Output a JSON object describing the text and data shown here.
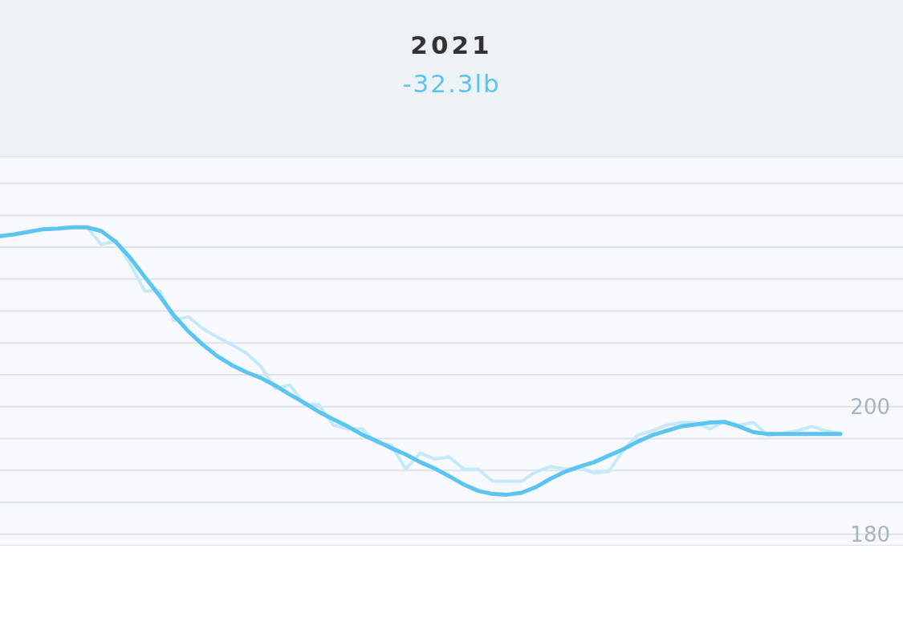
{
  "chart_data": {
    "type": "line",
    "title": "2021",
    "subtitle": "-32.3lb",
    "categories": [
      null,
      null,
      null,
      null,
      null,
      null,
      null,
      null,
      null,
      null,
      null,
      null,
      null,
      null,
      null,
      null,
      null,
      null,
      null,
      null,
      null,
      null,
      null,
      null,
      null,
      null,
      null,
      null,
      null,
      null,
      null,
      null,
      null,
      null,
      null,
      null,
      null,
      null,
      null,
      null,
      null,
      null,
      null,
      null,
      null,
      null,
      null,
      null,
      null,
      null,
      null,
      null,
      null,
      null,
      null,
      null,
      null,
      null,
      null
    ],
    "ylim": [
      178.2,
      239.2
    ],
    "yticks": [
      180,
      {
        "value": 185,
        "label": null
      },
      {
        "value": 190,
        "label": null
      },
      {
        "value": 195,
        "label": null
      },
      200,
      {
        "value": 205,
        "label": null
      },
      {
        "value": 210,
        "label": null
      },
      {
        "value": 215,
        "label": null
      },
      {
        "value": 220,
        "label": null
      },
      {
        "value": 225,
        "label": null
      },
      {
        "value": 230,
        "label": null
      },
      {
        "value": 235,
        "label": null
      }
    ],
    "grid": "y",
    "tick_labels": "y",
    "marker": "none",
    "series": [
      {
        "color": "#c3e9fa",
        "values": [
          226.7,
          227.0,
          227.4,
          227.8,
          227.9,
          228.1,
          228.1,
          225.4,
          226.0,
          222.3,
          218.1,
          218.2,
          213.5,
          214.1,
          212.2,
          210.9,
          209.7,
          208.4,
          206.3,
          202.8,
          203.4,
          200.3,
          200.3,
          197.1,
          196.5,
          196.5,
          194.3,
          194.0,
          190.2,
          192.7,
          191.8,
          192.1,
          190.2,
          190.2,
          188.3,
          188.3,
          188.3,
          189.8,
          190.6,
          190.2,
          190.4,
          189.6,
          189.8,
          193.1,
          195.5,
          196.2,
          197.1,
          197.5,
          197.5,
          196.5,
          197.7,
          197.1,
          197.5,
          195.5,
          195.8,
          196.2,
          196.9,
          196.2,
          195.8
        ]
      },
      {
        "color": "#5bc4f0",
        "values": [
          226.7,
          227.0,
          227.4,
          227.8,
          227.9,
          228.1,
          228.1,
          227.5,
          225.8,
          223.3,
          220.3,
          217.4,
          214.3,
          211.8,
          209.7,
          207.9,
          206.5,
          205.4,
          204.5,
          203.3,
          201.9,
          200.6,
          199.2,
          198.0,
          196.9,
          195.6,
          194.6,
          193.5,
          192.5,
          191.3,
          190.3,
          189.1,
          187.8,
          186.8,
          186.3,
          186.2,
          186.5,
          187.4,
          188.7,
          189.8,
          190.6,
          191.3,
          192.3,
          193.3,
          194.5,
          195.5,
          196.2,
          196.9,
          197.2,
          197.5,
          197.6,
          196.9,
          196.0,
          195.7,
          195.7,
          195.7,
          195.7,
          195.7,
          195.7
        ]
      }
    ]
  }
}
